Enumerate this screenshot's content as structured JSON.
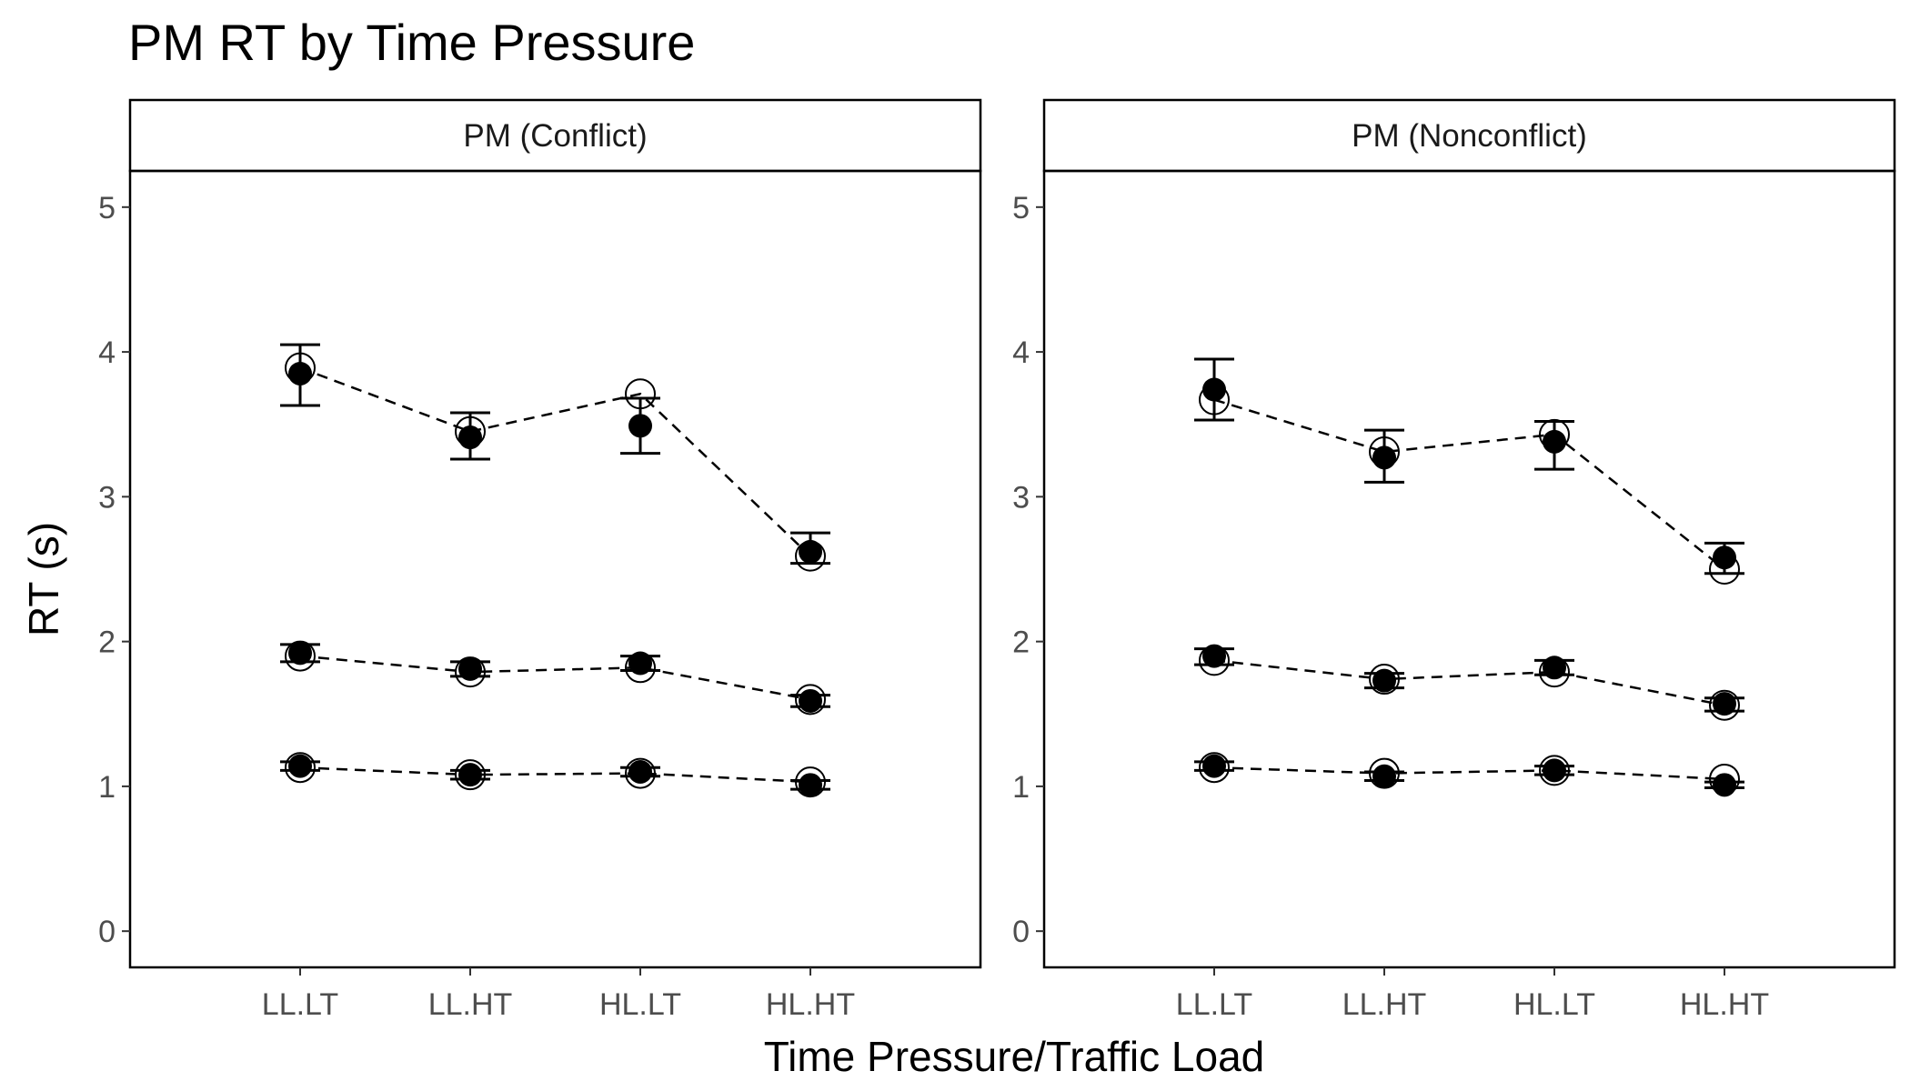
{
  "chart_data": {
    "type": "scatter",
    "title": "PM RT by Time Pressure",
    "xlabel": "Time Pressure/Traffic Load",
    "ylabel": "RT (s)",
    "ylim": [
      -0.25,
      5.25
    ],
    "yticks": [
      0,
      1,
      2,
      3,
      4,
      5
    ],
    "categories": [
      "LL.LT",
      "LL.HT",
      "HL.LT",
      "HL.HT"
    ],
    "legend": "none",
    "grid": false,
    "panels": [
      {
        "strip": "PM (Conflict)",
        "series": [
          {
            "observed": [
              3.85,
              3.41,
              3.49,
              2.62
            ],
            "predicted": [
              3.89,
              3.45,
              3.71,
              2.59
            ],
            "err_low": [
              3.63,
              3.26,
              3.3,
              2.54
            ],
            "err_high": [
              4.05,
              3.58,
              3.68,
              2.75
            ]
          },
          {
            "observed": [
              1.92,
              1.81,
              1.85,
              1.59
            ],
            "predicted": [
              1.9,
              1.79,
              1.82,
              1.6
            ],
            "err_low": [
              1.86,
              1.76,
              1.8,
              1.55
            ],
            "err_high": [
              1.98,
              1.86,
              1.9,
              1.63
            ]
          },
          {
            "observed": [
              1.14,
              1.08,
              1.1,
              1.01
            ],
            "predicted": [
              1.13,
              1.08,
              1.09,
              1.03
            ],
            "err_low": [
              1.11,
              1.05,
              1.07,
              0.98
            ],
            "err_high": [
              1.17,
              1.11,
              1.13,
              1.04
            ]
          }
        ]
      },
      {
        "strip": "PM (Nonconflict)",
        "series": [
          {
            "observed": [
              3.74,
              3.27,
              3.38,
              2.58
            ],
            "predicted": [
              3.67,
              3.31,
              3.43,
              2.5
            ],
            "err_low": [
              3.53,
              3.1,
              3.19,
              2.47
            ],
            "err_high": [
              3.95,
              3.46,
              3.52,
              2.68
            ]
          },
          {
            "observed": [
              1.9,
              1.73,
              1.82,
              1.57
            ],
            "predicted": [
              1.87,
              1.74,
              1.79,
              1.56
            ],
            "err_low": [
              1.84,
              1.68,
              1.77,
              1.52
            ],
            "err_high": [
              1.95,
              1.78,
              1.87,
              1.61
            ]
          },
          {
            "observed": [
              1.14,
              1.07,
              1.11,
              1.01
            ],
            "predicted": [
              1.13,
              1.09,
              1.11,
              1.05
            ],
            "err_low": [
              1.11,
              1.04,
              1.08,
              0.99
            ],
            "err_high": [
              1.17,
              1.1,
              1.14,
              1.03
            ]
          }
        ]
      }
    ]
  }
}
